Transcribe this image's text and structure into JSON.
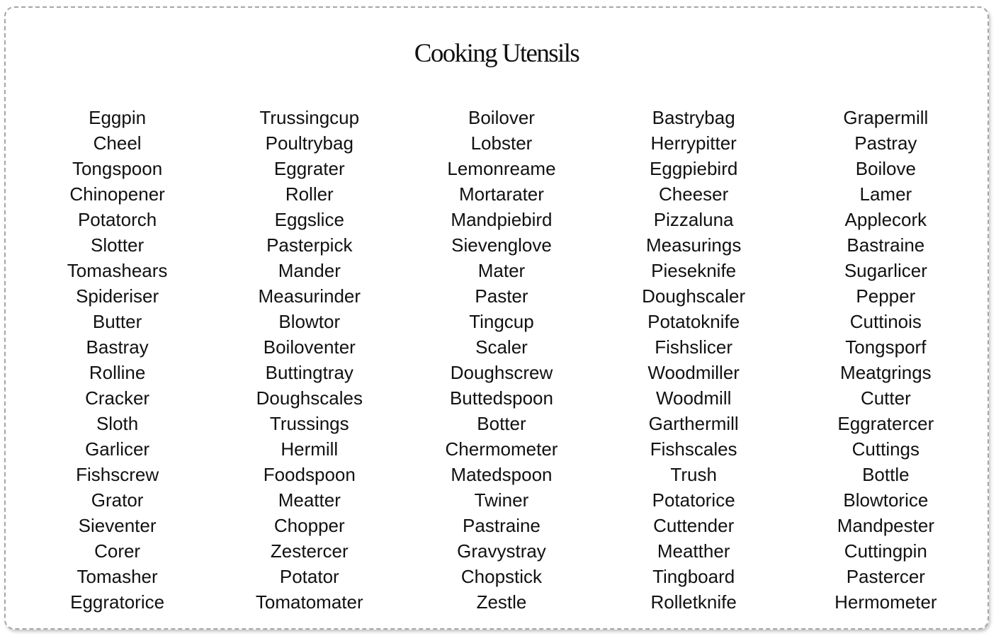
{
  "title": "Cooking Utensils",
  "columns": [
    [
      "Eggpin",
      "Cheel",
      "Tongspoon",
      "Chinopener",
      "Potatorch",
      "Slotter",
      "Tomashears",
      "Spideriser",
      "Butter",
      "Bastray",
      "Rolline",
      "Cracker",
      "Sloth",
      "Garlicer",
      "Fishscrew",
      "Grator",
      "Sieventer",
      "Corer",
      "Tomasher",
      "Eggratorice"
    ],
    [
      "Trussingcup",
      "Poultrybag",
      "Eggrater",
      "Roller",
      "Eggslice",
      "Pasterpick",
      "Mander",
      "Measurinder",
      "Blowtor",
      "Boiloventer",
      "Buttingtray",
      "Doughscales",
      "Trussings",
      "Hermill",
      "Foodspoon",
      "Meatter",
      "Chopper",
      "Zestercer",
      "Potator",
      "Tomatomater"
    ],
    [
      "Boilover",
      "Lobster",
      "Lemonreame",
      "Mortarater",
      "Mandpiebird",
      "Sievenglove",
      "Mater",
      "Paster",
      "Tingcup",
      "Scaler",
      "Doughscrew",
      "Buttedspoon",
      "Botter",
      "Chermometer",
      "Matedspoon",
      "Twiner",
      "Pastraine",
      "Gravystray",
      "Chopstick",
      "Zestle"
    ],
    [
      "Bastrybag",
      "Herrypitter",
      "Eggpiebird",
      "Cheeser",
      "Pizzaluna",
      "Measurings",
      "Pieseknife",
      "Doughscaler",
      "Potatoknife",
      "Fishslicer",
      "Woodmiller",
      "Woodmill",
      "Garthermill",
      "Fishscales",
      "Trush",
      "Potatorice",
      "Cuttender",
      "Meatther",
      "Tingboard",
      "Rolletknife"
    ],
    [
      "Grapermill",
      "Pastray",
      "Boilove",
      "Lamer",
      "Applecork",
      "Bastraine",
      "Sugarlicer",
      "Pepper",
      "Cuttinois",
      "Tongsporf",
      "Meatgrings",
      "Cutter",
      "Eggratercer",
      "Cuttings",
      "Bottle",
      "Blowtorice",
      "Mandpester",
      "Cuttingpin",
      "Pastercer",
      "Hermometer"
    ]
  ]
}
